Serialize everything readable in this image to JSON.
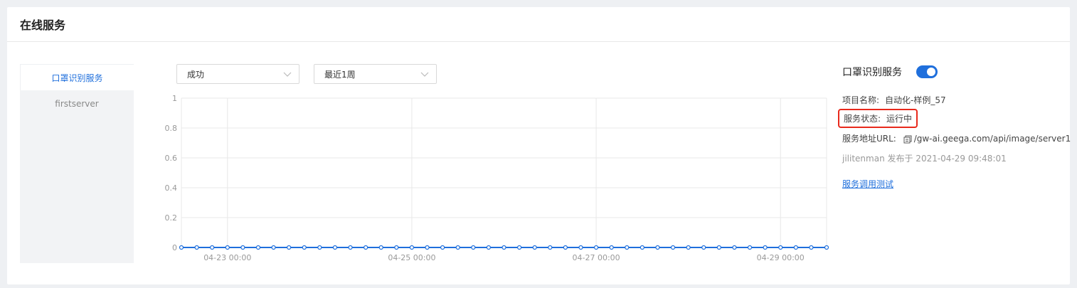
{
  "header": {
    "title": "在线服务"
  },
  "sidebar": {
    "items": [
      {
        "label": "口罩识别服务",
        "active": true
      },
      {
        "label": "firstserver",
        "active": false
      }
    ]
  },
  "filters": {
    "status_select": "成功",
    "range_select": "最近1周"
  },
  "chart_data": {
    "type": "line",
    "y_ticks": [
      "1",
      "0.8",
      "0.6",
      "0.4",
      "0.2",
      "0"
    ],
    "x_ticks": [
      "04-23 00:00",
      "04-25 00:00",
      "04-27 00:00",
      "04-29 00:00"
    ],
    "ylim": [
      0,
      1
    ],
    "series": [
      {
        "values": [
          0,
          0,
          0,
          0,
          0,
          0,
          0,
          0,
          0,
          0,
          0,
          0,
          0,
          0,
          0,
          0,
          0,
          0,
          0,
          0,
          0,
          0,
          0,
          0,
          0,
          0,
          0,
          0,
          0,
          0,
          0,
          0,
          0,
          0,
          0,
          0,
          0,
          0,
          0,
          0,
          0,
          0,
          0
        ]
      }
    ],
    "grid": true,
    "line_color": "#1f6fdc"
  },
  "info": {
    "service_name": "口罩识别服务",
    "enabled": true,
    "project_label": "项目名称:",
    "project_value": "自动化-样例_57",
    "status_label": "服务状态:",
    "status_value": "运行中",
    "url_label": "服务地址URL:",
    "url_value": "/gw-ai.geega.com/api/image/server1",
    "publisher": "jilitenman 发布于 2021-04-29 09:48:01",
    "test_link": "服务调用测试"
  }
}
